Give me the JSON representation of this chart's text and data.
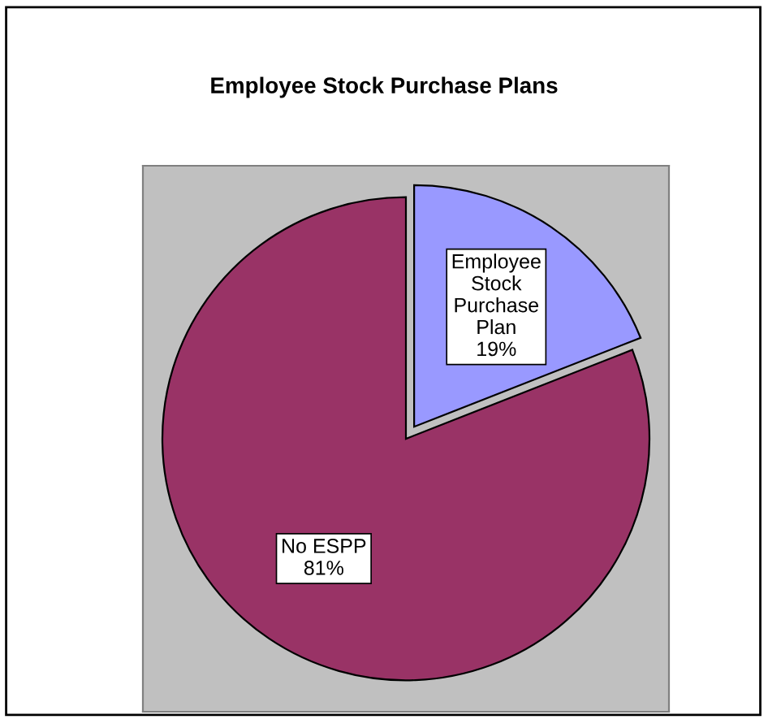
{
  "chart_data": {
    "type": "pie",
    "title": "Employee Stock Purchase Plans",
    "categories": [
      "Employee Stock Purchase Plan",
      "No ESPP"
    ],
    "values": [
      19,
      81
    ],
    "colors": [
      "#9999ff",
      "#993366"
    ],
    "value_labels": [
      "19%",
      "81%"
    ]
  }
}
